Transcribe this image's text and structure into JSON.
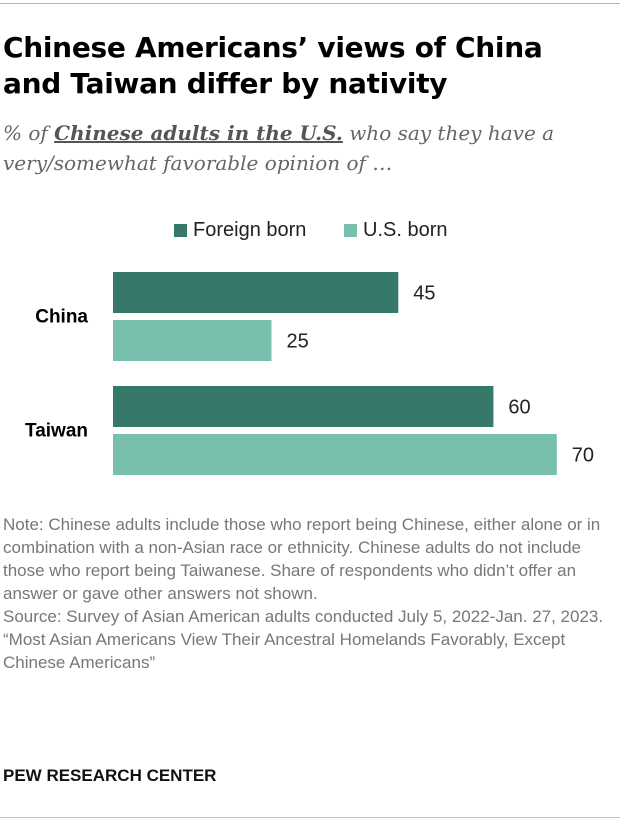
{
  "header": {
    "title": "Chinese Americans’ views of China and Taiwan differ by nativity",
    "subtitle_prefix": "% of",
    "subtitle_emphasis": "Chinese adults in the U.S.",
    "subtitle_suffix": "who say they have a very/somewhat favorable opinion of …"
  },
  "footer": {
    "note": "Note: Chinese adults include those who report being Chinese, either alone or in combination with a non-Asian race or ethnicity. Chinese adults do not include those who report being Taiwanese. Share of respondents who didn’t offer an answer or gave other answers not shown.",
    "source": "Source: Survey of Asian American adults conducted July 5, 2022-Jan. 27, 2023.",
    "report": "“Most Asian Americans View Their Ancestral Homelands Favorably, Except Chinese Americans”",
    "brand": "PEW RESEARCH CENTER"
  },
  "colors": {
    "foreign_born": "#36786a",
    "us_born": "#79bfad"
  },
  "chart_data": {
    "type": "bar",
    "orientation": "horizontal",
    "title": "Chinese Americans’ views of China and Taiwan differ by nativity",
    "categories": [
      "China",
      "Taiwan"
    ],
    "series": [
      {
        "name": "Foreign born",
        "values": [
          45,
          60
        ]
      },
      {
        "name": "U.S. born",
        "values": [
          25,
          70
        ]
      }
    ],
    "xlim": [
      0,
      100
    ],
    "grid": false,
    "legend_position": "top-center",
    "data_labels": true
  }
}
